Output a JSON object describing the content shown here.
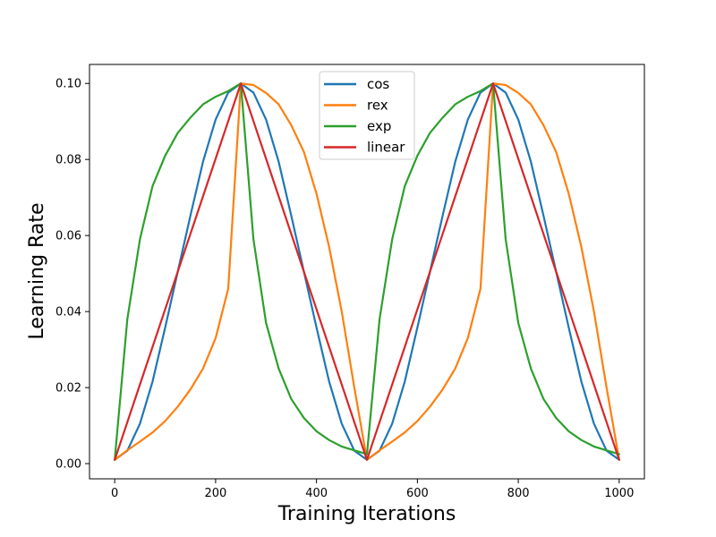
{
  "chart_data": {
    "type": "line",
    "title": "",
    "xlabel": "Training Iterations",
    "ylabel": "Learning Rate",
    "xlim": [
      -50,
      1050
    ],
    "ylim": [
      -0.004,
      0.105
    ],
    "xticks": [
      0,
      200,
      400,
      600,
      800,
      1000
    ],
    "xtick_labels": [
      "0",
      "200",
      "400",
      "600",
      "800",
      "1000"
    ],
    "yticks": [
      0.0,
      0.02,
      0.04,
      0.06,
      0.08,
      0.1
    ],
    "ytick_labels": [
      "0.00",
      "0.02",
      "0.04",
      "0.06",
      "0.08",
      "0.10"
    ],
    "grid": false,
    "legend_position": "top-center",
    "x": [
      0,
      25,
      50,
      75,
      100,
      125,
      150,
      175,
      200,
      225,
      250,
      275,
      300,
      325,
      350,
      375,
      400,
      425,
      450,
      475,
      500,
      525,
      550,
      575,
      600,
      625,
      650,
      675,
      700,
      725,
      750,
      775,
      800,
      825,
      850,
      875,
      900,
      925,
      950,
      975,
      1000
    ],
    "series": [
      {
        "name": "cos",
        "color": "#1f77b4",
        "values": [
          0.001,
          0.0034,
          0.0105,
          0.0216,
          0.0358,
          0.0505,
          0.0652,
          0.0794,
          0.0905,
          0.0976,
          0.1,
          0.0976,
          0.0905,
          0.0794,
          0.0652,
          0.0505,
          0.0358,
          0.0216,
          0.0105,
          0.0034,
          0.001,
          0.0034,
          0.0105,
          0.0216,
          0.0358,
          0.0505,
          0.0652,
          0.0794,
          0.0905,
          0.0976,
          0.1,
          0.0976,
          0.0905,
          0.0794,
          0.0652,
          0.0505,
          0.0358,
          0.0216,
          0.0105,
          0.0034,
          0.001
        ]
      },
      {
        "name": "rex",
        "color": "#ff7f0e",
        "values": [
          0.001,
          0.0035,
          0.0058,
          0.0082,
          0.0112,
          0.015,
          0.0195,
          0.025,
          0.033,
          0.046,
          0.1,
          0.0996,
          0.0975,
          0.0945,
          0.089,
          0.082,
          0.071,
          0.057,
          0.04,
          0.02,
          0.001,
          0.0035,
          0.0058,
          0.0082,
          0.0112,
          0.015,
          0.0195,
          0.025,
          0.033,
          0.046,
          0.1,
          0.0996,
          0.0975,
          0.0945,
          0.089,
          0.082,
          0.071,
          0.057,
          0.04,
          0.02,
          0.001
        ]
      },
      {
        "name": "exp",
        "color": "#2ca02c",
        "values": [
          0.001,
          0.038,
          0.059,
          0.073,
          0.081,
          0.087,
          0.091,
          0.0945,
          0.0965,
          0.098,
          0.1,
          0.059,
          0.037,
          0.025,
          0.017,
          0.012,
          0.0085,
          0.0062,
          0.0045,
          0.0035,
          0.0025,
          0.038,
          0.059,
          0.073,
          0.081,
          0.087,
          0.091,
          0.0945,
          0.0965,
          0.098,
          0.1,
          0.059,
          0.037,
          0.025,
          0.017,
          0.012,
          0.0085,
          0.0062,
          0.0045,
          0.0035,
          0.0025
        ]
      },
      {
        "name": "linear",
        "color": "#d62728",
        "values": [
          0.001,
          0.0109,
          0.0208,
          0.0307,
          0.0406,
          0.0505,
          0.0604,
          0.0703,
          0.0802,
          0.0901,
          0.1,
          0.0901,
          0.0802,
          0.0703,
          0.0604,
          0.0505,
          0.0406,
          0.0307,
          0.0208,
          0.0109,
          0.001,
          0.0109,
          0.0208,
          0.0307,
          0.0406,
          0.0505,
          0.0604,
          0.0703,
          0.0802,
          0.0901,
          0.1,
          0.0901,
          0.0802,
          0.0703,
          0.0604,
          0.0505,
          0.0406,
          0.0307,
          0.0208,
          0.0109,
          0.001
        ]
      }
    ]
  }
}
